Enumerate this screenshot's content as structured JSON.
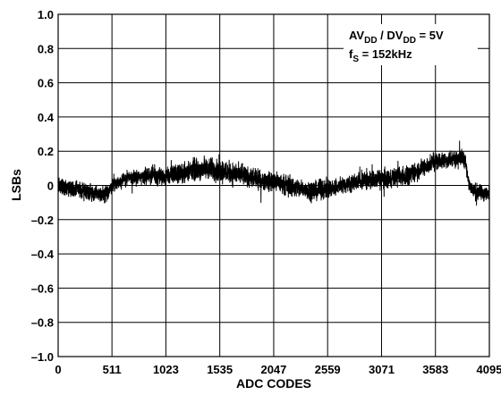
{
  "chart_data": {
    "type": "line",
    "xlabel": "ADC CODES",
    "ylabel": "LSBs",
    "xlim": [
      0,
      4095
    ],
    "ylim": [
      -1.0,
      1.0
    ],
    "x_ticks": [
      0,
      511,
      1023,
      1535,
      2047,
      2559,
      3071,
      3583,
      4095
    ],
    "x_tick_labels": [
      "0",
      "511",
      "1023",
      "1535",
      "2047",
      "2559",
      "3071",
      "3583",
      "4095"
    ],
    "y_ticks": [
      1.0,
      0.8,
      0.6,
      0.4,
      0.2,
      0,
      -0.2,
      -0.4,
      -0.6,
      -0.8,
      -1.0
    ],
    "y_tick_labels": [
      "1.0",
      "0.8",
      "0.6",
      "0.4",
      "0.2",
      "0",
      "–0.2",
      "–0.4",
      "–0.6",
      "–0.8",
      "–1.0"
    ],
    "grid": true,
    "annotation": {
      "line1": {
        "prefix": "AV",
        "sub1": "DD",
        "mid": " / DV",
        "sub2": "DD",
        "suffix": " = 5V"
      },
      "line2": {
        "prefix": "f",
        "sub": "S",
        "suffix": " = 152kHz"
      }
    },
    "series": [
      {
        "color": "#000000",
        "x": [
          0,
          128,
          256,
          384,
          448,
          511,
          640,
          768,
          896,
          1023,
          1152,
          1280,
          1408,
          1535,
          1664,
          1792,
          1920,
          2047,
          2176,
          2304,
          2432,
          2559,
          2688,
          2816,
          2944,
          3071,
          3200,
          3328,
          3456,
          3583,
          3712,
          3820,
          3870,
          3900,
          3960,
          4095
        ],
        "center": [
          0.0,
          -0.02,
          -0.03,
          -0.05,
          -0.06,
          0.0,
          0.04,
          0.05,
          0.06,
          0.05,
          0.07,
          0.09,
          0.1,
          0.09,
          0.07,
          0.05,
          0.03,
          0.02,
          0.0,
          -0.02,
          -0.03,
          -0.02,
          0.0,
          0.02,
          0.03,
          0.04,
          0.05,
          0.06,
          0.1,
          0.14,
          0.15,
          0.16,
          0.15,
          0.0,
          -0.04,
          -0.05
        ],
        "spread": [
          0.06,
          0.06,
          0.07,
          0.07,
          0.07,
          0.06,
          0.06,
          0.06,
          0.07,
          0.07,
          0.08,
          0.09,
          0.09,
          0.1,
          0.09,
          0.08,
          0.08,
          0.08,
          0.08,
          0.08,
          0.08,
          0.08,
          0.07,
          0.07,
          0.08,
          0.08,
          0.08,
          0.08,
          0.08,
          0.07,
          0.07,
          0.07,
          0.07,
          0.07,
          0.07,
          0.06
        ]
      }
    ]
  }
}
